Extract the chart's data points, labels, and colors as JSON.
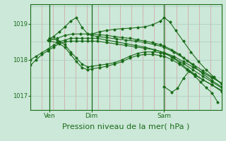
{
  "bg_color": "#cce8d8",
  "plot_bg_color": "#cce8d8",
  "line_color": "#1a6b1a",
  "grid_color_v": "#d4a0a0",
  "grid_color_h": "#aaccc0",
  "xlabel": "Pression niveau de la mer( hPa )",
  "xlabel_fontsize": 8,
  "yticks": [
    1017,
    1018,
    1019
  ],
  "ylim": [
    1016.6,
    1019.55
  ],
  "xlim": [
    0.0,
    1.0
  ],
  "xtick_labels": [
    "Ven",
    "Dim",
    "Sam"
  ],
  "xtick_positions": [
    0.1,
    0.32,
    0.7
  ],
  "vline_positions": [
    0.1,
    0.32,
    0.7
  ],
  "num_vgrid": 17,
  "hgrid_positions": [
    1017.0,
    1017.5,
    1018.0,
    1018.5,
    1019.0,
    1019.5
  ],
  "series": [
    {
      "x": [
        0.0,
        0.03,
        0.06,
        0.09,
        0.12,
        0.15,
        0.18,
        0.21,
        0.24,
        0.27,
        0.3,
        0.32,
        0.35,
        0.4,
        0.45,
        0.5,
        0.55,
        0.6,
        0.65,
        0.7,
        0.75,
        0.8,
        0.85,
        0.9,
        0.95,
        1.0
      ],
      "y": [
        1017.85,
        1018.0,
        1018.15,
        1018.25,
        1018.35,
        1018.45,
        1018.5,
        1018.52,
        1018.52,
        1018.52,
        1018.52,
        1018.52,
        1018.52,
        1018.48,
        1018.44,
        1018.4,
        1018.36,
        1018.32,
        1018.28,
        1018.2,
        1018.1,
        1017.95,
        1017.8,
        1017.65,
        1017.5,
        1017.35
      ]
    },
    {
      "x": [
        0.0,
        0.03,
        0.06,
        0.09,
        0.12,
        0.15,
        0.18,
        0.21,
        0.24,
        0.27,
        0.3,
        0.32,
        0.35,
        0.4,
        0.45,
        0.5,
        0.55,
        0.6,
        0.65,
        0.7,
        0.75,
        0.8,
        0.85,
        0.9,
        0.95,
        1.0
      ],
      "y": [
        1018.0,
        1018.1,
        1018.2,
        1018.3,
        1018.4,
        1018.5,
        1018.55,
        1018.6,
        1018.6,
        1018.6,
        1018.6,
        1018.6,
        1018.6,
        1018.55,
        1018.5,
        1018.45,
        1018.4,
        1018.35,
        1018.28,
        1018.2,
        1018.05,
        1017.9,
        1017.72,
        1017.55,
        1017.38,
        1017.22
      ]
    },
    {
      "x": [
        0.09,
        0.12,
        0.15,
        0.18,
        0.21,
        0.24,
        0.27,
        0.3,
        0.32,
        0.35,
        0.4,
        0.45,
        0.5,
        0.55,
        0.6,
        0.65,
        0.7,
        0.75,
        0.8,
        0.85,
        0.9,
        0.95,
        1.0
      ],
      "y": [
        1018.55,
        1018.65,
        1018.78,
        1018.92,
        1019.08,
        1019.18,
        1018.9,
        1018.72,
        1018.68,
        1018.65,
        1018.62,
        1018.58,
        1018.55,
        1018.52,
        1018.48,
        1018.42,
        1018.35,
        1018.22,
        1018.05,
        1017.88,
        1017.7,
        1017.52,
        1017.35
      ]
    },
    {
      "x": [
        0.1,
        0.14,
        0.18,
        0.22,
        0.26,
        0.3,
        0.32,
        0.36,
        0.4,
        0.44,
        0.48,
        0.52,
        0.56,
        0.6,
        0.64,
        0.68,
        0.7,
        0.74,
        0.78,
        0.82,
        0.86,
        0.9,
        0.95,
        1.0
      ],
      "y": [
        1018.55,
        1018.6,
        1018.68,
        1018.72,
        1018.72,
        1018.72,
        1018.72,
        1018.7,
        1018.68,
        1018.65,
        1018.62,
        1018.6,
        1018.56,
        1018.52,
        1018.48,
        1018.42,
        1018.38,
        1018.28,
        1018.15,
        1017.98,
        1017.8,
        1017.62,
        1017.42,
        1017.25
      ]
    },
    {
      "x": [
        0.1,
        0.14,
        0.18,
        0.21,
        0.24,
        0.27,
        0.3,
        0.32,
        0.36,
        0.4,
        0.44,
        0.48,
        0.52,
        0.56,
        0.6,
        0.64,
        0.68,
        0.7,
        0.74,
        0.78,
        0.82,
        0.86,
        0.9,
        0.95,
        1.0
      ],
      "y": [
        1018.52,
        1018.48,
        1018.35,
        1018.15,
        1017.95,
        1017.78,
        1017.72,
        1017.75,
        1017.78,
        1017.82,
        1017.88,
        1017.95,
        1018.05,
        1018.12,
        1018.15,
        1018.15,
        1018.12,
        1018.1,
        1018.0,
        1017.88,
        1017.72,
        1017.58,
        1017.45,
        1017.3,
        1017.15
      ]
    },
    {
      "x": [
        0.1,
        0.14,
        0.18,
        0.21,
        0.24,
        0.27,
        0.3,
        0.32,
        0.36,
        0.4,
        0.44,
        0.48,
        0.52,
        0.56,
        0.6,
        0.64,
        0.68,
        0.7,
        0.74,
        0.78,
        0.82,
        0.86,
        0.9,
        0.95,
        1.0
      ],
      "y": [
        1018.6,
        1018.55,
        1018.42,
        1018.22,
        1018.05,
        1017.88,
        1017.8,
        1017.82,
        1017.85,
        1017.88,
        1017.92,
        1018.0,
        1018.1,
        1018.18,
        1018.22,
        1018.22,
        1018.2,
        1018.18,
        1018.08,
        1017.92,
        1017.75,
        1017.6,
        1017.45,
        1017.3,
        1017.12
      ]
    },
    {
      "x": [
        0.32,
        0.36,
        0.4,
        0.44,
        0.48,
        0.52,
        0.56,
        0.6,
        0.64,
        0.68,
        0.7,
        0.73,
        0.76,
        0.8,
        0.84,
        0.88,
        0.92,
        0.96,
        1.0
      ],
      "y": [
        1018.72,
        1018.78,
        1018.82,
        1018.85,
        1018.87,
        1018.88,
        1018.9,
        1018.92,
        1018.98,
        1019.08,
        1019.18,
        1019.05,
        1018.82,
        1018.52,
        1018.22,
        1017.95,
        1017.72,
        1017.52,
        1017.32
      ]
    },
    {
      "x": [
        0.7,
        0.74,
        0.77,
        0.8,
        0.83,
        0.86,
        0.89,
        0.92,
        0.95,
        0.98
      ],
      "y": [
        1017.25,
        1017.1,
        1017.2,
        1017.48,
        1017.68,
        1017.55,
        1017.38,
        1017.22,
        1017.08,
        1016.82
      ]
    }
  ]
}
